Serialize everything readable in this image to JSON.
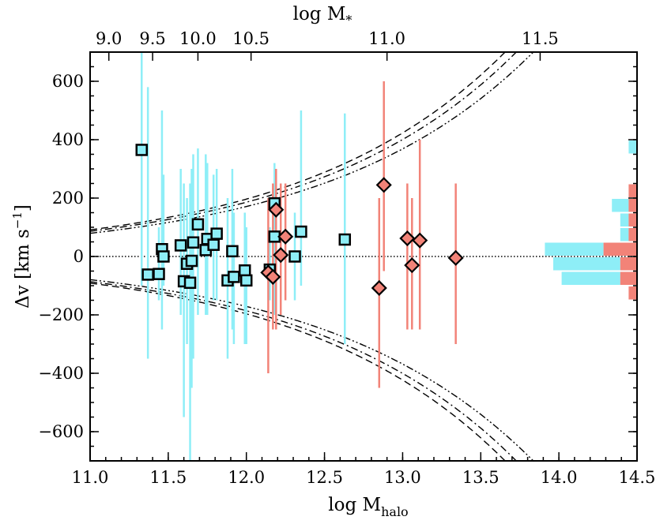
{
  "chart_data": {
    "type": "scatter",
    "xlabel": "log M",
    "xlabel_sub": "halo",
    "top_xlabel": "log M",
    "top_xlabel_sub": "*",
    "ylabel": "Δv [km s",
    "ylabel_sup": "−1",
    "ylabel_close": "]",
    "xlim": [
      11.0,
      14.5
    ],
    "ylim": [
      -700,
      700
    ],
    "x_ticks": [
      11.0,
      11.5,
      12.0,
      12.5,
      13.0,
      13.5,
      14.0,
      14.5
    ],
    "x_tick_labels": [
      "11.0",
      "11.5",
      "12.0",
      "12.5",
      "13.0",
      "13.5",
      "14.0",
      "14.5"
    ],
    "y_ticks": [
      -600,
      -400,
      -200,
      0,
      200,
      400,
      600
    ],
    "y_tick_labels": [
      "−600",
      "−400",
      "−200",
      "0",
      "200",
      "400",
      "600"
    ],
    "top_ticks": [
      {
        "label": "9.0",
        "x": 11.12
      },
      {
        "label": "9.5",
        "x": 11.4
      },
      {
        "label": "10.0",
        "x": 11.69
      },
      {
        "label": "10.5",
        "x": 12.03
      },
      {
        "label": "11.0",
        "x": 12.9
      },
      {
        "label": "11.5",
        "x": 13.88
      }
    ],
    "colors": {
      "cyan": "#8eeef7",
      "red": "#f28378",
      "zero_line": "#000000"
    },
    "series": [
      {
        "name": "squares",
        "marker": "square",
        "color": "#8eeef7",
        "points": [
          {
            "x": 11.33,
            "y": 365,
            "lo": -100,
            "hi": 700
          },
          {
            "x": 11.37,
            "y": -62,
            "lo": -350,
            "hi": 580
          },
          {
            "x": 11.44,
            "y": -60,
            "lo": -150,
            "hi": 100
          },
          {
            "x": 11.46,
            "y": 25,
            "lo": -250,
            "hi": 500
          },
          {
            "x": 11.47,
            "y": 0,
            "lo": -100,
            "hi": 280
          },
          {
            "x": 11.58,
            "y": 38,
            "lo": -200,
            "hi": 300
          },
          {
            "x": 11.6,
            "y": -85,
            "lo": -550,
            "hi": 250
          },
          {
            "x": 11.62,
            "y": -25,
            "lo": -300,
            "hi": 200
          },
          {
            "x": 11.64,
            "y": -90,
            "lo": -700,
            "hi": 250
          },
          {
            "x": 11.65,
            "y": -15,
            "lo": -450,
            "hi": 300
          },
          {
            "x": 11.66,
            "y": 48,
            "lo": -350,
            "hi": 350
          },
          {
            "x": 11.69,
            "y": 110,
            "lo": -200,
            "hi": 370
          },
          {
            "x": 11.74,
            "y": 22,
            "lo": -200,
            "hi": 350
          },
          {
            "x": 11.75,
            "y": 60,
            "lo": -200,
            "hi": 320
          },
          {
            "x": 11.79,
            "y": 40,
            "lo": -150,
            "hi": 280
          },
          {
            "x": 11.81,
            "y": 78,
            "lo": -150,
            "hi": 300
          },
          {
            "x": 11.88,
            "y": -82,
            "lo": -350,
            "hi": 200
          },
          {
            "x": 11.91,
            "y": 18,
            "lo": -250,
            "hi": 300
          },
          {
            "x": 11.92,
            "y": -70,
            "lo": -300,
            "hi": 150
          },
          {
            "x": 11.99,
            "y": -48,
            "lo": -300,
            "hi": 150
          },
          {
            "x": 12.0,
            "y": -82,
            "lo": -300,
            "hi": 100
          },
          {
            "x": 12.15,
            "y": -45,
            "lo": -150,
            "hi": 100
          },
          {
            "x": 12.18,
            "y": 182,
            "lo": -200,
            "hi": 320
          },
          {
            "x": 12.18,
            "y": 68,
            "lo": -200,
            "hi": 250
          },
          {
            "x": 12.31,
            "y": 0,
            "lo": -150,
            "hi": 150
          },
          {
            "x": 12.35,
            "y": 85,
            "lo": -100,
            "hi": 500
          },
          {
            "x": 12.63,
            "y": 58,
            "lo": -300,
            "hi": 490
          }
        ]
      },
      {
        "name": "diamonds",
        "marker": "diamond",
        "color": "#f28378",
        "points": [
          {
            "x": 12.14,
            "y": -55,
            "lo": -400,
            "hi": 200
          },
          {
            "x": 12.17,
            "y": -70,
            "lo": -250,
            "hi": 250
          },
          {
            "x": 12.19,
            "y": 160,
            "lo": -250,
            "hi": 300
          },
          {
            "x": 12.22,
            "y": 5,
            "lo": -200,
            "hi": 250
          },
          {
            "x": 12.25,
            "y": 68,
            "lo": -150,
            "hi": 250
          },
          {
            "x": 12.85,
            "y": -108,
            "lo": -450,
            "hi": 200
          },
          {
            "x": 12.88,
            "y": 245,
            "lo": -50,
            "hi": 600
          },
          {
            "x": 13.03,
            "y": 62,
            "lo": -250,
            "hi": 250
          },
          {
            "x": 13.06,
            "y": -30,
            "lo": -250,
            "hi": 200
          },
          {
            "x": 13.11,
            "y": 55,
            "lo": -250,
            "hi": 400
          },
          {
            "x": 13.34,
            "y": -5,
            "lo": -300,
            "hi": 250
          }
        ]
      }
    ],
    "histogram": {
      "bins": [
        {
          "y_lo": 350,
          "y_hi": 400,
          "cyan": 1,
          "red": 0
        },
        {
          "y_lo": 200,
          "y_hi": 250,
          "cyan": 0,
          "red": 1
        },
        {
          "y_lo": 150,
          "y_hi": 200,
          "cyan": 2,
          "red": 1
        },
        {
          "y_lo": 100,
          "y_hi": 150,
          "cyan": 1,
          "red": 1
        },
        {
          "y_lo": 50,
          "y_hi": 100,
          "cyan": 1,
          "red": 1
        },
        {
          "y_lo": 0,
          "y_hi": 50,
          "cyan": 7,
          "red": 4
        },
        {
          "y_lo": -50,
          "y_hi": 0,
          "cyan": 8,
          "red": 2
        },
        {
          "y_lo": -100,
          "y_hi": -50,
          "cyan": 7,
          "red": 2
        },
        {
          "y_lo": -150,
          "y_hi": -100,
          "cyan": 0,
          "red": 1
        }
      ]
    },
    "envelopes": [
      {
        "style": "dashed",
        "C": 91.2
      },
      {
        "style": "dash-dot",
        "C": 86.3
      },
      {
        "style": "dash-dot-dot",
        "C": 79.4
      }
    ]
  }
}
